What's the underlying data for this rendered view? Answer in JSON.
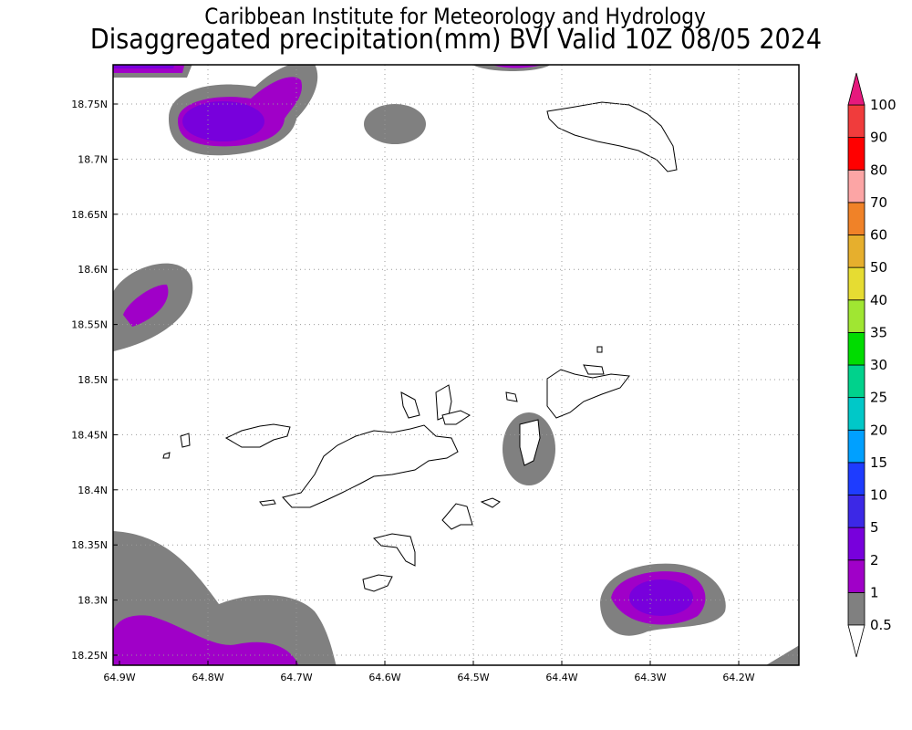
{
  "header": {
    "title_line1": "Caribbean Institute for Meteorology and Hydrology",
    "title_line2": "Disaggregated precipitation(mm) BVI Valid 10Z 08/05 2024"
  },
  "map": {
    "lon_labels": [
      "64.9W",
      "64.8W",
      "64.7W",
      "64.6W",
      "64.5W",
      "64.4W",
      "64.3W",
      "64.2W"
    ],
    "lat_labels": [
      "18.75N",
      "18.7N",
      "18.65N",
      "18.6N",
      "18.55N",
      "18.5N",
      "18.45N",
      "18.4N",
      "18.35N",
      "18.3N",
      "18.25N"
    ],
    "grid_color": "#999999",
    "land_color": "#ffffff"
  },
  "colorbar": {
    "levels": [
      "0.5",
      "1",
      "2",
      "5",
      "10",
      "15",
      "20",
      "25",
      "30",
      "35",
      "40",
      "50",
      "60",
      "70",
      "80",
      "90",
      "100"
    ],
    "colors": [
      "#808080",
      "#a000c8",
      "#7800dc",
      "#3c28e6",
      "#1e3cff",
      "#00a0ff",
      "#00c8c8",
      "#00d28c",
      "#00dc00",
      "#a0e632",
      "#e6dc32",
      "#e6af2d",
      "#f08228",
      "#fca5a5",
      "#ff0000",
      "#f03c3c"
    ],
    "under_color": "#ffffff",
    "over_color": "#e6197d"
  }
}
